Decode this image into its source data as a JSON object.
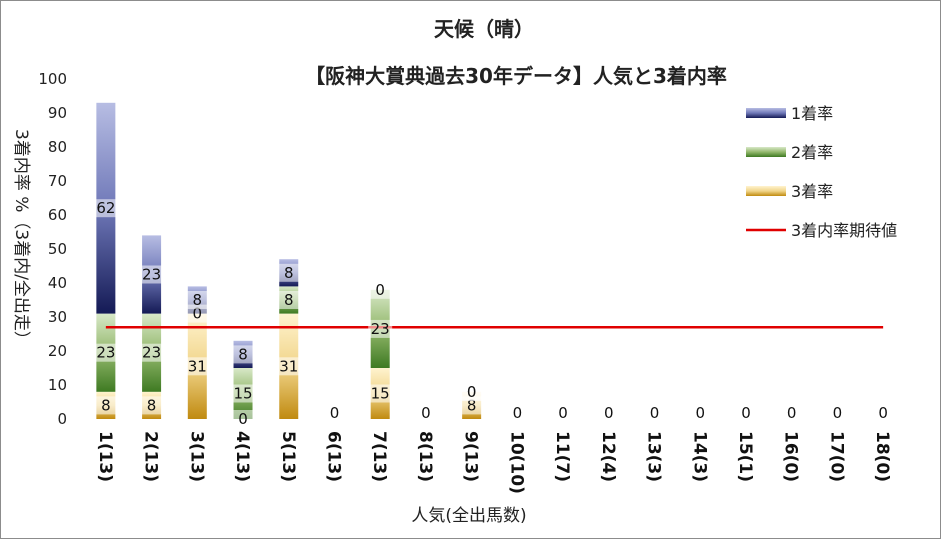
{
  "chart_data": {
    "type": "bar",
    "stacked": true,
    "title": "天候（晴）",
    "subtitle": "【阪神大賞典過去30年データ】人気と3着内率",
    "xlabel": "人気(全出馬数)",
    "ylabel": "3着内率 %（3着内/全出走）",
    "ylim": [
      0,
      100
    ],
    "yticks": [
      0,
      10,
      20,
      30,
      40,
      50,
      60,
      70,
      80,
      90,
      100
    ],
    "grid": false,
    "legend_position": "right",
    "categories": [
      "1(13)",
      "2(13)",
      "3(13)",
      "4(13)",
      "5(13)",
      "6(13)",
      "7(13)",
      "8(13)",
      "9(13)",
      "10(10)",
      "11(7)",
      "12(4)",
      "13(3)",
      "14(3)",
      "15(1)",
      "16(0)",
      "17(0)",
      "18(0)"
    ],
    "series": [
      {
        "name": "3着率",
        "color": "#c9a227",
        "values": [
          8,
          8,
          31,
          0,
          31,
          0,
          15,
          0,
          8,
          0,
          0,
          0,
          0,
          0,
          0,
          0,
          0,
          0
        ]
      },
      {
        "name": "2着率",
        "color": "#5b8c3a",
        "values": [
          23,
          23,
          0,
          15,
          8,
          0,
          23,
          0,
          0,
          0,
          0,
          0,
          0,
          0,
          0,
          0,
          0,
          0
        ]
      },
      {
        "name": "1着率",
        "color": "#2e3a87",
        "values": [
          62,
          23,
          8,
          8,
          8,
          0,
          0,
          0,
          0,
          0,
          0,
          0,
          0,
          0,
          0,
          0,
          0,
          0
        ]
      }
    ],
    "reference_line": {
      "name": "3着内率期待値",
      "color": "#e00000",
      "value": 27
    },
    "legend": [
      "1着率",
      "2着率",
      "3着率",
      "3着内率期待値"
    ]
  }
}
